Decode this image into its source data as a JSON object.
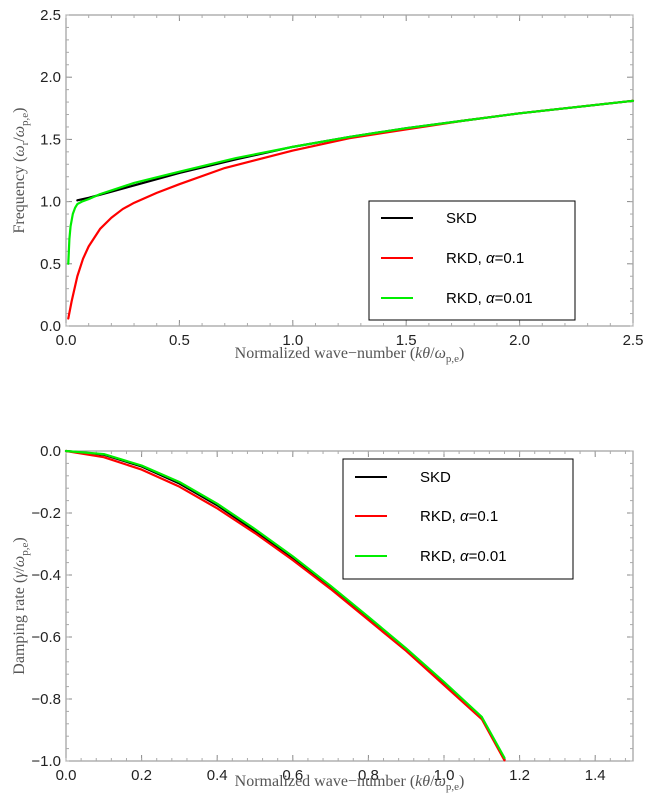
{
  "chart_data": [
    {
      "type": "line",
      "xlabel": "Normalized wave−number  (kθ/ω_p,e)",
      "xlabel_parts": {
        "prefix": "Normalized wave−number  (",
        "k": "k",
        "theta": "θ",
        "slash": "/",
        "omega": "ω",
        "sub": "p,e",
        "suffix": ")"
      },
      "ylabel": "Frequency  (ω_r/ω_p,e)",
      "ylabel_parts": {
        "prefix": "Frequency  (",
        "omega1": "ω",
        "sub1": "r",
        "slash": "/",
        "omega2": "ω",
        "sub2": "p,e",
        "suffix": ")"
      },
      "xlim": [
        0,
        2.5
      ],
      "ylim": [
        0,
        2.5
      ],
      "xticks": [
        0.0,
        0.5,
        1.0,
        1.5,
        2.0,
        2.5
      ],
      "xtick_labels": [
        "0.0",
        "0.5",
        "1.0",
        "1.5",
        "2.0",
        "2.5"
      ],
      "yticks": [
        0.0,
        0.5,
        1.0,
        1.5,
        2.0,
        2.5
      ],
      "ytick_labels": [
        "0.0",
        "0.5",
        "1.0",
        "1.5",
        "2.0",
        "2.5"
      ],
      "grid": false,
      "legend_position": "bottom-right",
      "series": [
        {
          "name": "SKD",
          "color": "#000000",
          "x": [
            0.05,
            0.1,
            0.2,
            0.3,
            0.5,
            0.75,
            1.0,
            1.25,
            1.5,
            1.75,
            2.0,
            2.25,
            2.5
          ],
          "y": [
            1.01,
            1.03,
            1.08,
            1.13,
            1.23,
            1.34,
            1.44,
            1.52,
            1.59,
            1.65,
            1.71,
            1.76,
            1.81
          ]
        },
        {
          "name": "RKD, α=0.1",
          "color": "#ff0000",
          "x": [
            0.01,
            0.025,
            0.05,
            0.075,
            0.1,
            0.15,
            0.2,
            0.25,
            0.3,
            0.4,
            0.5,
            0.7,
            1.0,
            1.25,
            1.5,
            1.75,
            2.0,
            2.25,
            2.5
          ],
          "y": [
            0.06,
            0.2,
            0.4,
            0.54,
            0.64,
            0.78,
            0.87,
            0.94,
            0.99,
            1.07,
            1.14,
            1.27,
            1.41,
            1.51,
            1.58,
            1.65,
            1.71,
            1.76,
            1.81
          ]
        },
        {
          "name": "RKD, α=0.01",
          "color": "#00ee00",
          "x": [
            0.01,
            0.015,
            0.02,
            0.03,
            0.04,
            0.05,
            0.07,
            0.1,
            0.15,
            0.2,
            0.3,
            0.5,
            0.75,
            1.0,
            1.25,
            1.5,
            1.75,
            2.0,
            2.25,
            2.5
          ],
          "y": [
            0.5,
            0.7,
            0.8,
            0.9,
            0.95,
            0.98,
            1.0,
            1.02,
            1.06,
            1.09,
            1.15,
            1.24,
            1.35,
            1.44,
            1.52,
            1.59,
            1.65,
            1.71,
            1.76,
            1.81
          ]
        }
      ]
    },
    {
      "type": "line",
      "xlabel": "Normalized wave−number  (kθ/ω_p,e)",
      "xlabel_parts": {
        "prefix": "Normalized wave−number  (",
        "k": "k",
        "theta": "θ",
        "slash": "/",
        "omega": "ω",
        "sub": "p,e",
        "suffix": ")"
      },
      "ylabel": "Damping rate  (γ/ω_p,e)",
      "ylabel_parts": {
        "prefix": "Damping rate  (",
        "gamma": "γ",
        "slash": "/",
        "omega": "ω",
        "sub": "p,e",
        "suffix": ")"
      },
      "xlim": [
        0,
        1.5
      ],
      "ylim": [
        -1.0,
        0.0
      ],
      "xticks": [
        0.0,
        0.2,
        0.4,
        0.6,
        0.8,
        1.0,
        1.2,
        1.4
      ],
      "xtick_labels": [
        "0.0",
        "0.2",
        "0.4",
        "0.6",
        "0.8",
        "1.0",
        "1.2",
        "1.4"
      ],
      "yticks": [
        0.0,
        -0.2,
        -0.4,
        -0.6,
        -0.8,
        -1.0
      ],
      "ytick_labels": [
        "0.0",
        "−0.2",
        "−0.4",
        "−0.6",
        "−0.8",
        "−1.0"
      ],
      "grid": false,
      "legend_position": "top-right",
      "series": [
        {
          "name": "SKD",
          "color": "#000000",
          "x": [
            0.0,
            0.1,
            0.2,
            0.3,
            0.4,
            0.5,
            0.6,
            0.7,
            0.8,
            0.9,
            1.0,
            1.1,
            1.16
          ],
          "y": [
            0.0,
            -0.012,
            -0.05,
            -0.105,
            -0.175,
            -0.258,
            -0.345,
            -0.44,
            -0.54,
            -0.64,
            -0.75,
            -0.86,
            -0.995
          ]
        },
        {
          "name": "RKD, α=0.1",
          "color": "#ff0000",
          "x": [
            0.0,
            0.1,
            0.2,
            0.3,
            0.4,
            0.5,
            0.6,
            0.7,
            0.8,
            0.9,
            1.0,
            1.1,
            1.16
          ],
          "y": [
            0.0,
            -0.02,
            -0.06,
            -0.115,
            -0.185,
            -0.265,
            -0.352,
            -0.445,
            -0.545,
            -0.645,
            -0.755,
            -0.865,
            -0.998
          ]
        },
        {
          "name": "RKD, α=0.01",
          "color": "#00ee00",
          "x": [
            0.0,
            0.1,
            0.2,
            0.3,
            0.4,
            0.5,
            0.6,
            0.7,
            0.8,
            0.9,
            1.0,
            1.1,
            1.16
          ],
          "y": [
            0.0,
            -0.01,
            -0.047,
            -0.1,
            -0.17,
            -0.252,
            -0.34,
            -0.435,
            -0.535,
            -0.637,
            -0.745,
            -0.858,
            -0.99
          ]
        }
      ]
    }
  ]
}
